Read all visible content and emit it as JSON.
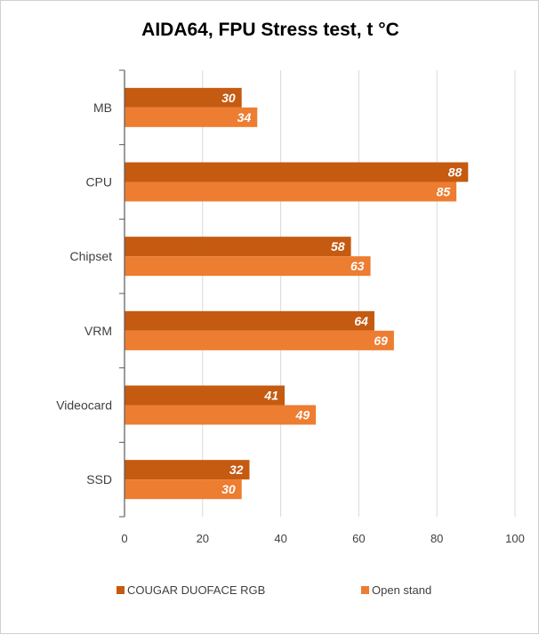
{
  "chart_data": {
    "type": "bar",
    "orientation": "horizontal",
    "title": "AIDA64, FPU Stress test, t °C",
    "categories": [
      "MB",
      "CPU",
      "Chipset",
      "VRM",
      "Videocard",
      "SSD"
    ],
    "series": [
      {
        "name": "COUGAR DUOFACE RGB",
        "values": [
          30,
          88,
          58,
          64,
          41,
          32
        ],
        "color": "#C55A11"
      },
      {
        "name": "Open stand",
        "values": [
          34,
          85,
          63,
          69,
          49,
          30
        ],
        "color": "#ED7D31"
      }
    ],
    "xlim": [
      0,
      100
    ],
    "xticks": [
      "0",
      "20",
      "40",
      "60",
      "80",
      "100"
    ],
    "grid": true,
    "legend_position": "bottom",
    "data_label_color": "#FFFFFF",
    "grid_color": "#D9D9D9"
  }
}
